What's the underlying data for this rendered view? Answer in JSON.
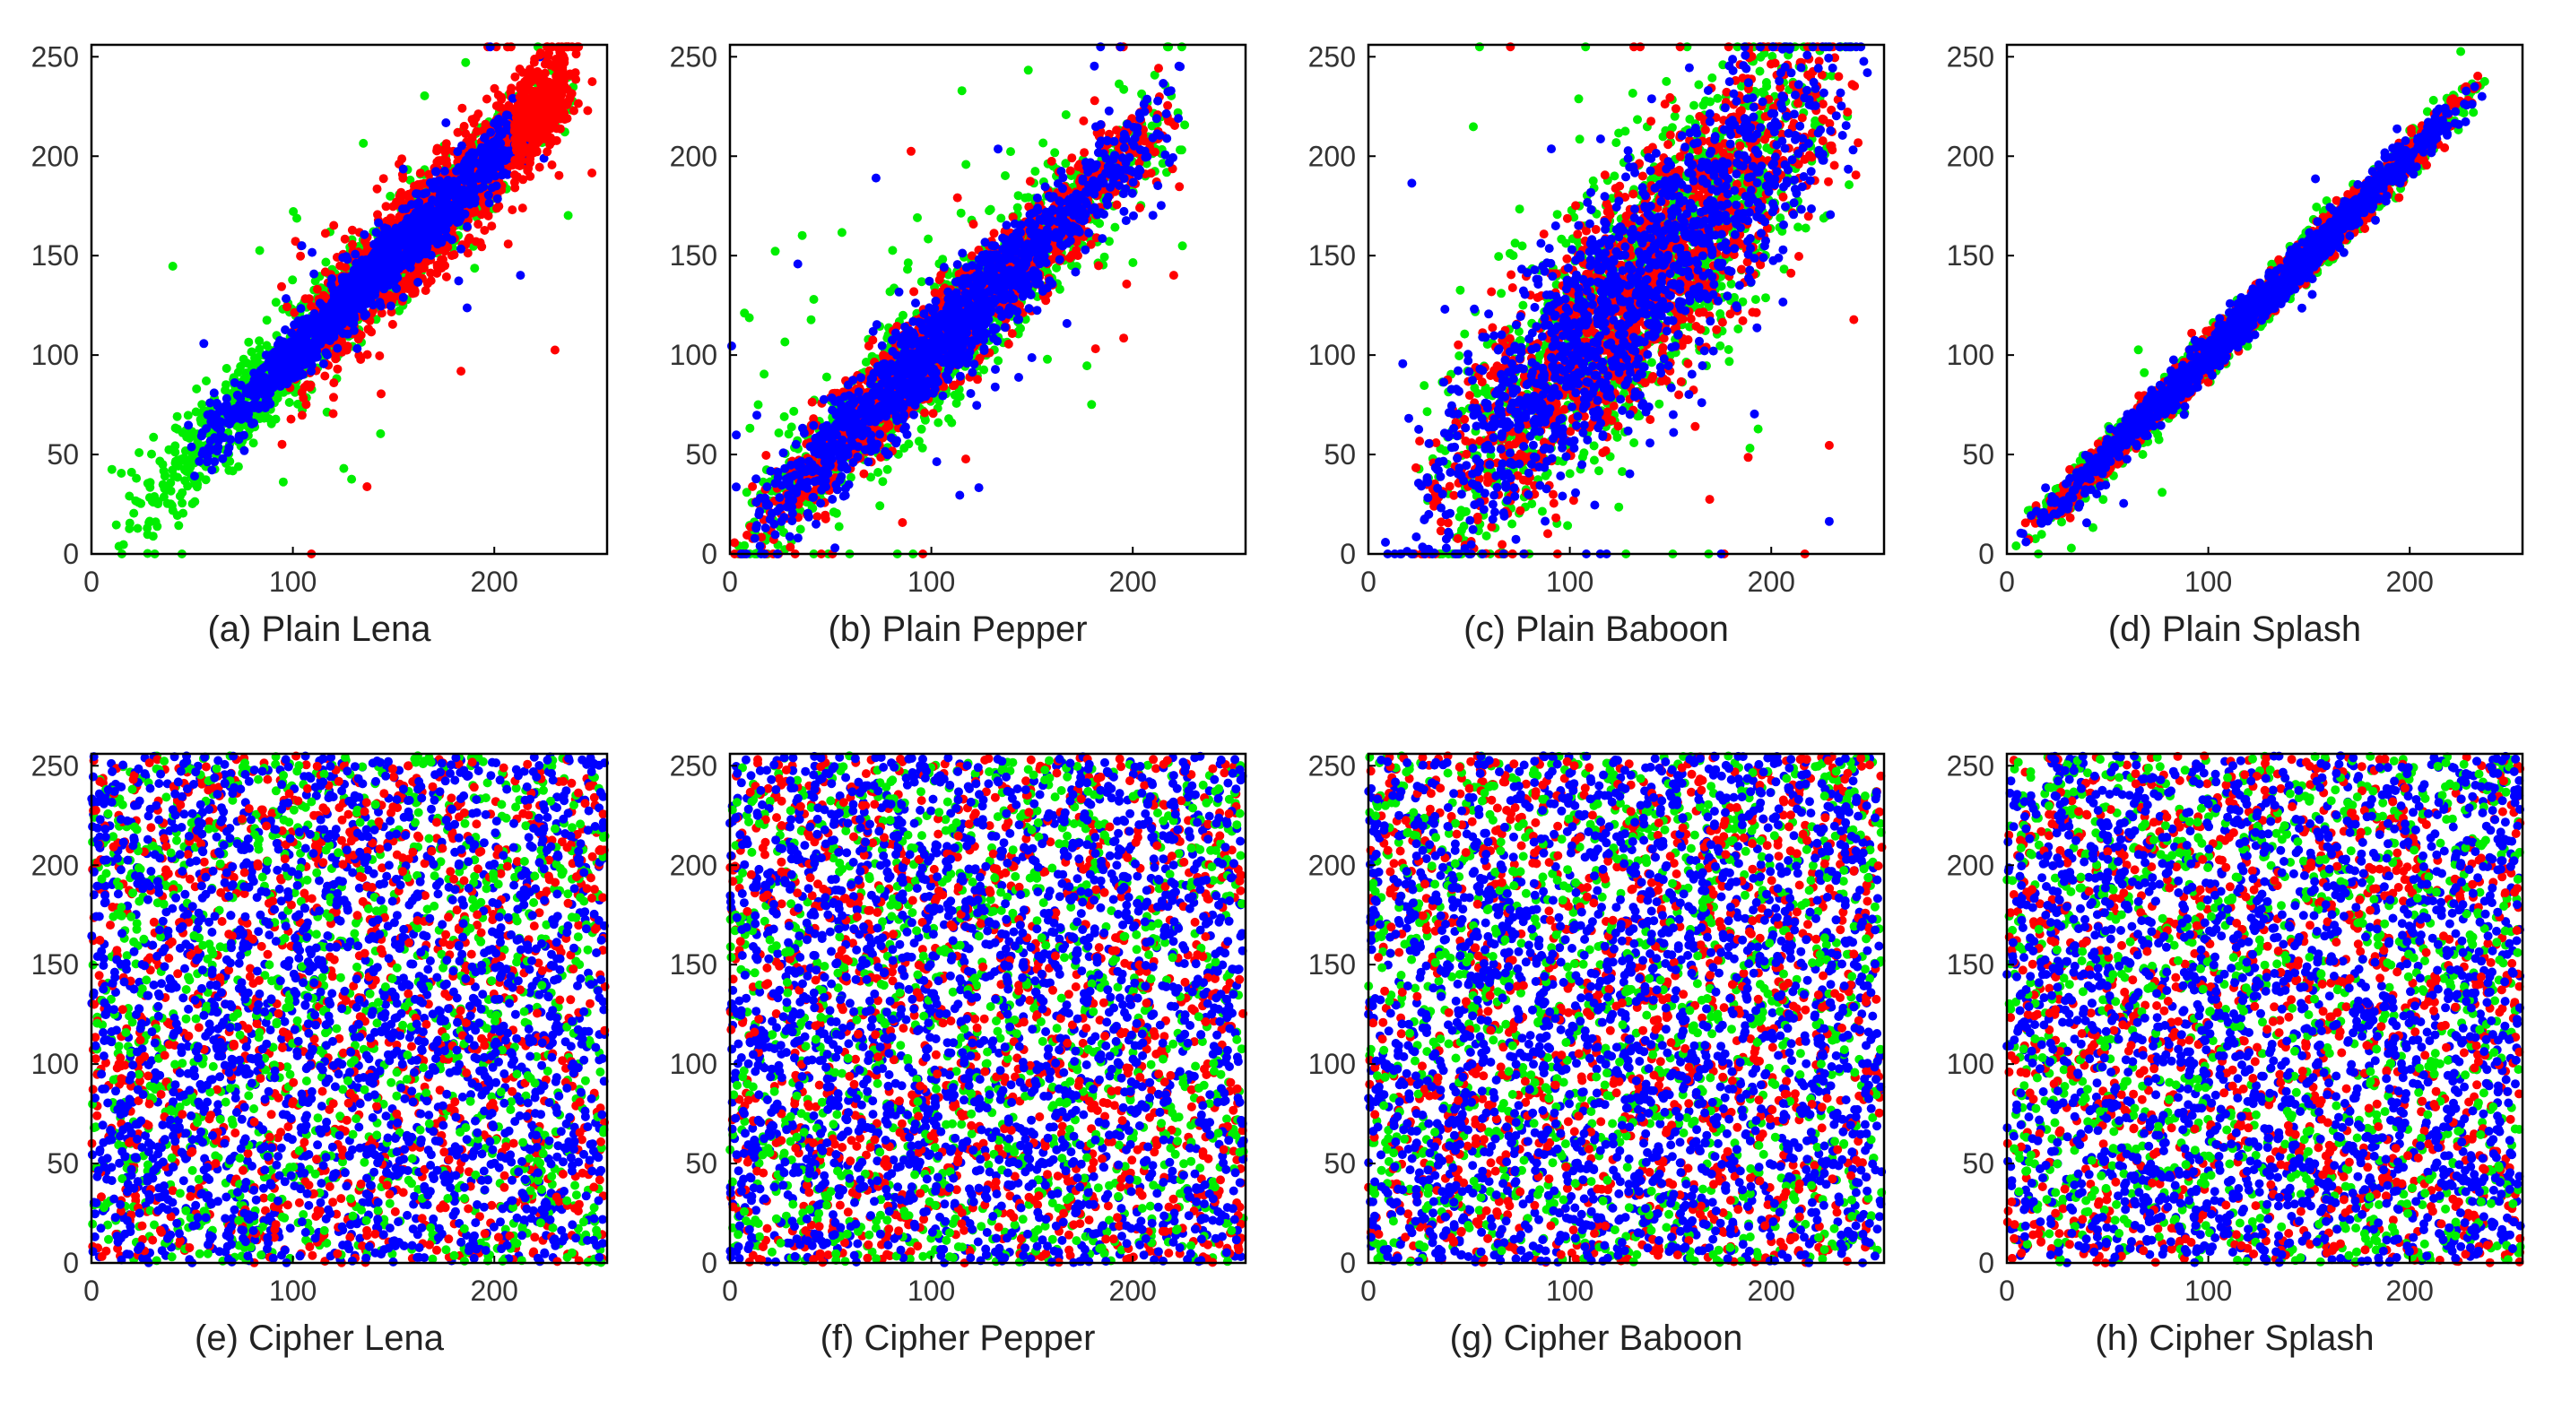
{
  "figure": {
    "colors": {
      "r": "#ff0000",
      "g": "#00ee00",
      "b": "#0000ff"
    },
    "axis_color": "#000000",
    "tick_color": "#333333"
  },
  "chart_data": [
    {
      "id": "a",
      "type": "scatter",
      "caption": "(a) Plain Lena",
      "pattern": "plain",
      "seed": 11,
      "xlim": [
        0,
        256
      ],
      "ylim": [
        0,
        256
      ],
      "xticks": [
        0,
        100,
        200
      ],
      "yticks": [
        0,
        50,
        100,
        150,
        200,
        250
      ],
      "series": [
        {
          "name": "R",
          "color": "#ff0000"
        },
        {
          "name": "G",
          "color": "#00ee00"
        },
        {
          "name": "B",
          "color": "#0000ff"
        }
      ],
      "profile": {
        "slope": 1.0,
        "intercept": 0,
        "spread": [
          14,
          12,
          8
        ],
        "out": [
          0.03,
          0.03,
          0.02
        ],
        "range": [
          [
            90,
            250
          ],
          [
            8,
            240
          ],
          [
            45,
            230
          ]
        ],
        "cluster": [
          [
            0.25,
            210,
            235,
            12
          ]
        ]
      }
    },
    {
      "id": "b",
      "type": "scatter",
      "caption": "(b) Plain Pepper",
      "pattern": "plain",
      "seed": 22,
      "xlim": [
        0,
        256
      ],
      "ylim": [
        0,
        256
      ],
      "xticks": [
        0,
        100,
        200
      ],
      "yticks": [
        0,
        50,
        100,
        150,
        200,
        250
      ],
      "series": [
        {
          "name": "R",
          "color": "#ff0000"
        },
        {
          "name": "G",
          "color": "#00ee00"
        },
        {
          "name": "B",
          "color": "#0000ff"
        }
      ],
      "profile": {
        "slope": 1.0,
        "intercept": 2,
        "spread": [
          12,
          14,
          12
        ],
        "out": [
          0.05,
          0.07,
          0.04
        ],
        "range": [
          [
            0,
            225
          ],
          [
            0,
            230
          ],
          [
            0,
            225
          ]
        ],
        "cluster": []
      }
    },
    {
      "id": "c",
      "type": "scatter",
      "caption": "(c) Plain Baboon",
      "pattern": "plain",
      "seed": 33,
      "xlim": [
        0,
        256
      ],
      "ylim": [
        0,
        256
      ],
      "xticks": [
        0,
        100,
        200
      ],
      "yticks": [
        0,
        50,
        100,
        150,
        200,
        250
      ],
      "series": [
        {
          "name": "R",
          "color": "#ff0000"
        },
        {
          "name": "G",
          "color": "#00ee00"
        },
        {
          "name": "B",
          "color": "#0000ff"
        }
      ],
      "profile": {
        "slope": 1.0,
        "intercept": 0,
        "spread": [
          30,
          34,
          30
        ],
        "out": [
          0.02,
          0.03,
          0.02
        ],
        "range": [
          [
            20,
            245
          ],
          [
            25,
            240
          ],
          [
            5,
            252
          ]
        ],
        "cluster": []
      }
    },
    {
      "id": "d",
      "type": "scatter",
      "caption": "(d) Plain Splash",
      "pattern": "plain",
      "seed": 44,
      "xlim": [
        0,
        256
      ],
      "ylim": [
        0,
        256
      ],
      "xticks": [
        0,
        100,
        200
      ],
      "yticks": [
        0,
        50,
        100,
        150,
        200,
        250
      ],
      "series": [
        {
          "name": "R",
          "color": "#ff0000"
        },
        {
          "name": "G",
          "color": "#00ee00"
        },
        {
          "name": "B",
          "color": "#0000ff"
        }
      ],
      "profile": {
        "slope": 1.0,
        "intercept": 0,
        "spread": [
          5,
          6,
          5
        ],
        "out": [
          0.01,
          0.015,
          0.01
        ],
        "range": [
          [
            5,
            235
          ],
          [
            3,
            240
          ],
          [
            5,
            240
          ]
        ],
        "cluster": []
      }
    },
    {
      "id": "e",
      "type": "scatter",
      "caption": "(e) Cipher Lena",
      "pattern": "uniform",
      "seed": 55,
      "xlim": [
        0,
        256
      ],
      "ylim": [
        0,
        256
      ],
      "xticks": [
        0,
        100,
        200
      ],
      "yticks": [
        0,
        50,
        100,
        150,
        200,
        250
      ],
      "series": [
        {
          "name": "R",
          "color": "#ff0000"
        },
        {
          "name": "G",
          "color": "#00ee00"
        },
        {
          "name": "B",
          "color": "#0000ff"
        }
      ]
    },
    {
      "id": "f",
      "type": "scatter",
      "caption": "(f) Cipher Pepper",
      "pattern": "uniform",
      "seed": 66,
      "xlim": [
        0,
        256
      ],
      "ylim": [
        0,
        256
      ],
      "xticks": [
        0,
        100,
        200
      ],
      "yticks": [
        0,
        50,
        100,
        150,
        200,
        250
      ],
      "series": [
        {
          "name": "R",
          "color": "#ff0000"
        },
        {
          "name": "G",
          "color": "#00ee00"
        },
        {
          "name": "B",
          "color": "#0000ff"
        }
      ]
    },
    {
      "id": "g",
      "type": "scatter",
      "caption": "(g) Cipher Baboon",
      "pattern": "uniform",
      "seed": 77,
      "xlim": [
        0,
        256
      ],
      "ylim": [
        0,
        256
      ],
      "xticks": [
        0,
        100,
        200
      ],
      "yticks": [
        0,
        50,
        100,
        150,
        200,
        250
      ],
      "series": [
        {
          "name": "R",
          "color": "#ff0000"
        },
        {
          "name": "G",
          "color": "#00ee00"
        },
        {
          "name": "B",
          "color": "#0000ff"
        }
      ]
    },
    {
      "id": "h",
      "type": "scatter",
      "caption": "(h) Cipher Splash",
      "pattern": "uniform",
      "seed": 88,
      "xlim": [
        0,
        256
      ],
      "ylim": [
        0,
        256
      ],
      "xticks": [
        0,
        100,
        200
      ],
      "yticks": [
        0,
        50,
        100,
        150,
        200,
        250
      ],
      "series": [
        {
          "name": "R",
          "color": "#ff0000"
        },
        {
          "name": "G",
          "color": "#00ee00"
        },
        {
          "name": "B",
          "color": "#0000ff"
        }
      ]
    }
  ]
}
